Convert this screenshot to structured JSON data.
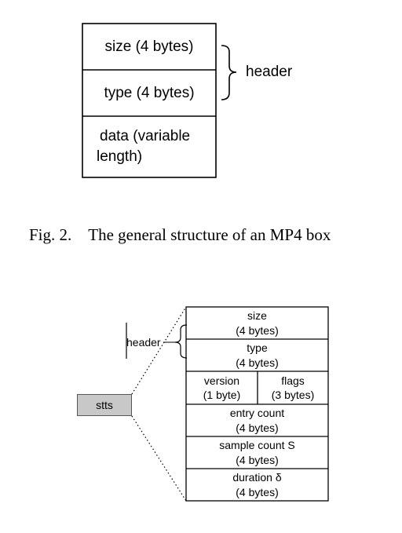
{
  "figure1": {
    "box_fields": {
      "size": "size (4 bytes)",
      "type": "type (4 bytes)",
      "data": [
        "data (variable",
        "length)"
      ]
    },
    "brace_label": "header"
  },
  "caption": "Fig. 2. The general structure of an MP4 box",
  "figure2": {
    "stts_label": "stts",
    "header_label": "header",
    "rows": {
      "size": [
        "size",
        "(4 bytes)"
      ],
      "type": [
        "type",
        "(4 bytes)"
      ],
      "version": [
        "version",
        "(1 byte)"
      ],
      "flags": [
        "flags",
        "(3 bytes)"
      ],
      "entry_count": [
        "entry count",
        "(4 bytes)"
      ],
      "sample_count": [
        "sample count S",
        "(4 bytes)"
      ],
      "duration": [
        "duration δ",
        "(4 bytes)"
      ]
    }
  }
}
